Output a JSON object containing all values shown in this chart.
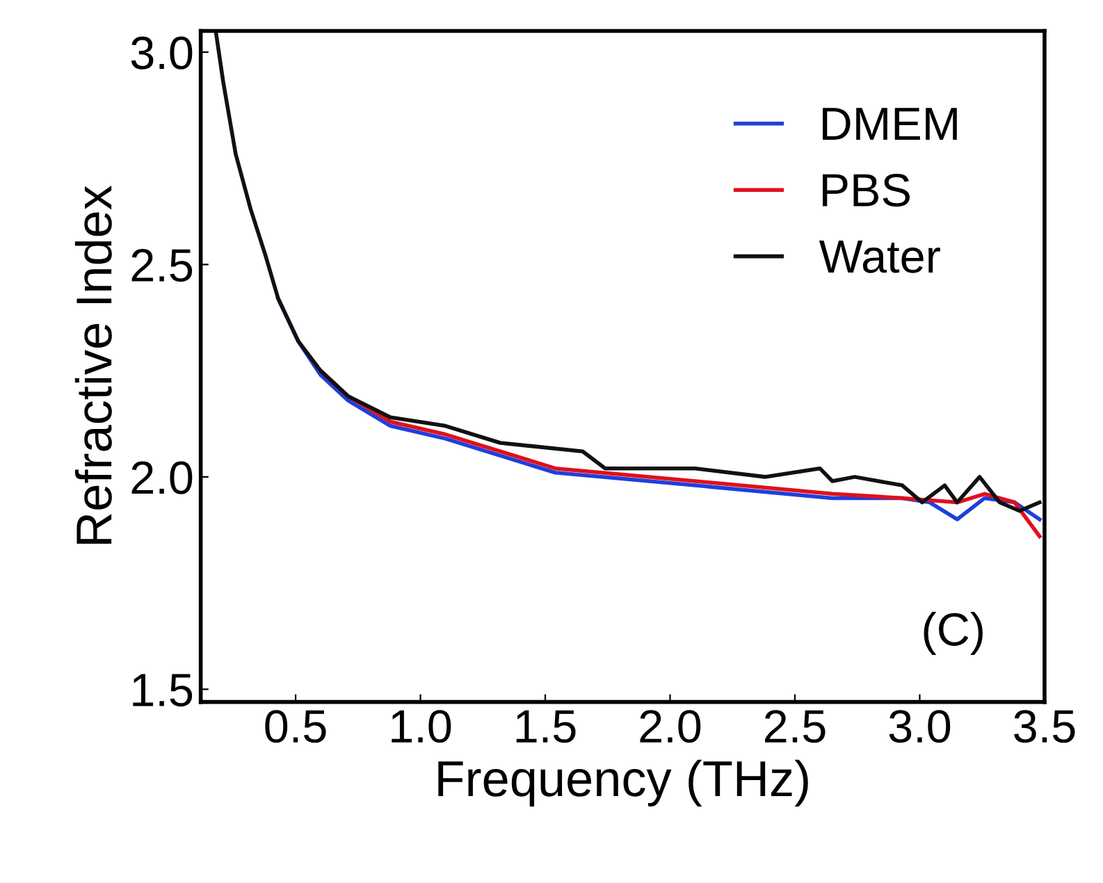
{
  "chart_data": {
    "type": "line",
    "xlabel": "Frequency (THz)",
    "ylabel": "Refractive Index",
    "xlim": [
      0.12,
      3.5
    ],
    "xticks": [
      0.5,
      {
        "value": 1,
        "label": "1.0"
      },
      1.5,
      {
        "value": 2,
        "label": "2.0"
      },
      2.5,
      {
        "value": 3,
        "label": "3.0"
      },
      3.5
    ],
    "ylim": [
      1.47,
      3.05
    ],
    "yticks": [
      1.5,
      {
        "value": 2,
        "label": "2.0"
      },
      2.5,
      {
        "value": 3,
        "label": "3.0"
      }
    ],
    "grid": false,
    "legend": "top right",
    "marker": "none",
    "line_style": "solid",
    "annotations": [
      "(C)"
    ],
    "series": [
      {
        "name": "DMEM",
        "color": "#1f3fdc",
        "x": [
          0.43,
          0.51,
          0.6,
          0.71,
          0.88,
          1.1,
          1.54,
          2.1,
          2.65,
          2.93,
          3.04,
          3.15,
          3.26,
          3.38,
          3.48
        ],
        "values": [
          2.42,
          2.32,
          2.24,
          2.18,
          2.12,
          2.09,
          2.01,
          1.98,
          1.95,
          1.95,
          1.94,
          1.9,
          1.95,
          1.94,
          1.9
        ]
      },
      {
        "name": "PBS",
        "color": "#e0101c",
        "x": [
          0.6,
          0.71,
          0.88,
          1.1,
          1.54,
          2.1,
          2.65,
          2.93,
          3.15,
          3.26,
          3.38,
          3.48
        ],
        "values": [
          2.25,
          2.19,
          2.13,
          2.1,
          2.02,
          1.99,
          1.96,
          1.95,
          1.94,
          1.96,
          1.94,
          1.86
        ]
      },
      {
        "name": "Water",
        "color": "#111111",
        "x": [
          0.18,
          0.21,
          0.26,
          0.32,
          0.38,
          0.43,
          0.51,
          0.6,
          0.71,
          0.88,
          1.1,
          1.32,
          1.65,
          1.74,
          2.1,
          2.38,
          2.6,
          2.65,
          2.74,
          2.93,
          3.01,
          3.1,
          3.15,
          3.24,
          3.32,
          3.4,
          3.48
        ],
        "values": [
          3.05,
          2.93,
          2.76,
          2.63,
          2.52,
          2.42,
          2.32,
          2.25,
          2.19,
          2.14,
          2.12,
          2.08,
          2.06,
          2.02,
          2.02,
          2.0,
          2.02,
          1.99,
          2.0,
          1.98,
          1.94,
          1.98,
          1.94,
          2.0,
          1.94,
          1.92,
          1.94
        ]
      }
    ]
  }
}
